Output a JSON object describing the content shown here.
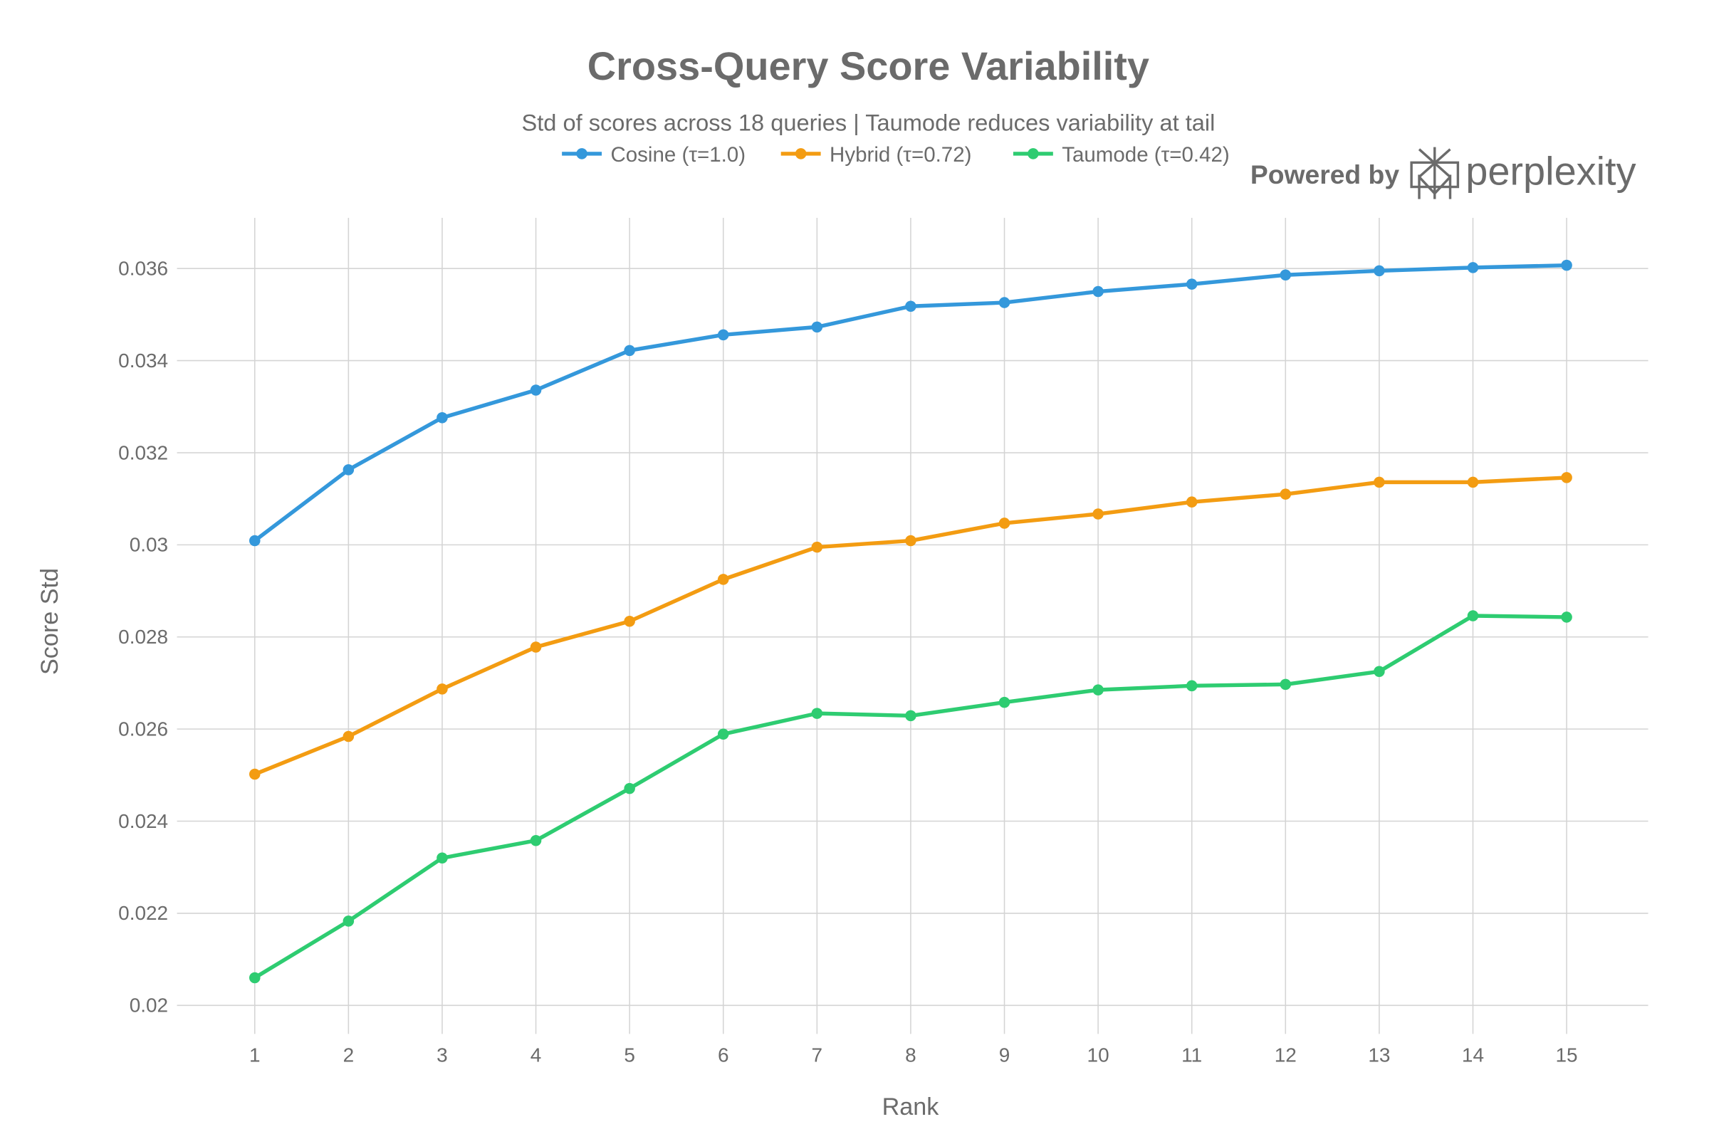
{
  "chart_data": {
    "type": "line",
    "title": "Cross-Query Score Variability",
    "subtitle": "Std of scores across 18 queries | Taumode reduces variability at tail",
    "xlabel": "Rank",
    "ylabel": "Score Std",
    "x": [
      1,
      2,
      3,
      4,
      5,
      6,
      7,
      8,
      9,
      10,
      11,
      12,
      13,
      14,
      15
    ],
    "xlim": [
      0.17,
      15.87
    ],
    "ylim": [
      0.01938,
      0.0371
    ],
    "yticks": [
      0.02,
      0.022,
      0.024,
      0.026,
      0.028,
      0.03,
      0.032,
      0.034,
      0.036
    ],
    "ytick_labels": [
      "0.02",
      "0.022",
      "0.024",
      "0.026",
      "0.028",
      "0.03",
      "0.032",
      "0.034",
      "0.036"
    ],
    "xtick_labels": [
      "1",
      "2",
      "3",
      "4",
      "5",
      "6",
      "7",
      "8",
      "9",
      "10",
      "11",
      "12",
      "13",
      "14",
      "15"
    ],
    "grid": true,
    "legend_placement": "top-center",
    "series": [
      {
        "name": "Cosine (τ=1.0)",
        "color": "#3498db",
        "values": [
          0.03009,
          0.03163,
          0.03276,
          0.03336,
          0.03422,
          0.03456,
          0.03473,
          0.03518,
          0.03526,
          0.0355,
          0.03566,
          0.03586,
          0.03595,
          0.03602,
          0.03607
        ]
      },
      {
        "name": "Hybrid (τ=0.72)",
        "color": "#f39c12",
        "values": [
          0.02502,
          0.02584,
          0.02687,
          0.02778,
          0.02834,
          0.02925,
          0.02995,
          0.03009,
          0.03047,
          0.03067,
          0.03093,
          0.0311,
          0.03136,
          0.03136,
          0.03146
        ]
      },
      {
        "name": "Taumode (τ=0.42)",
        "color": "#2ecc71",
        "values": [
          0.0206,
          0.02183,
          0.0232,
          0.02358,
          0.02471,
          0.02589,
          0.02634,
          0.02629,
          0.02658,
          0.02685,
          0.02694,
          0.02697,
          0.02725,
          0.02846,
          0.02843
        ]
      }
    ]
  },
  "watermark": {
    "prefix": "Powered by",
    "brand": "perplexity"
  }
}
